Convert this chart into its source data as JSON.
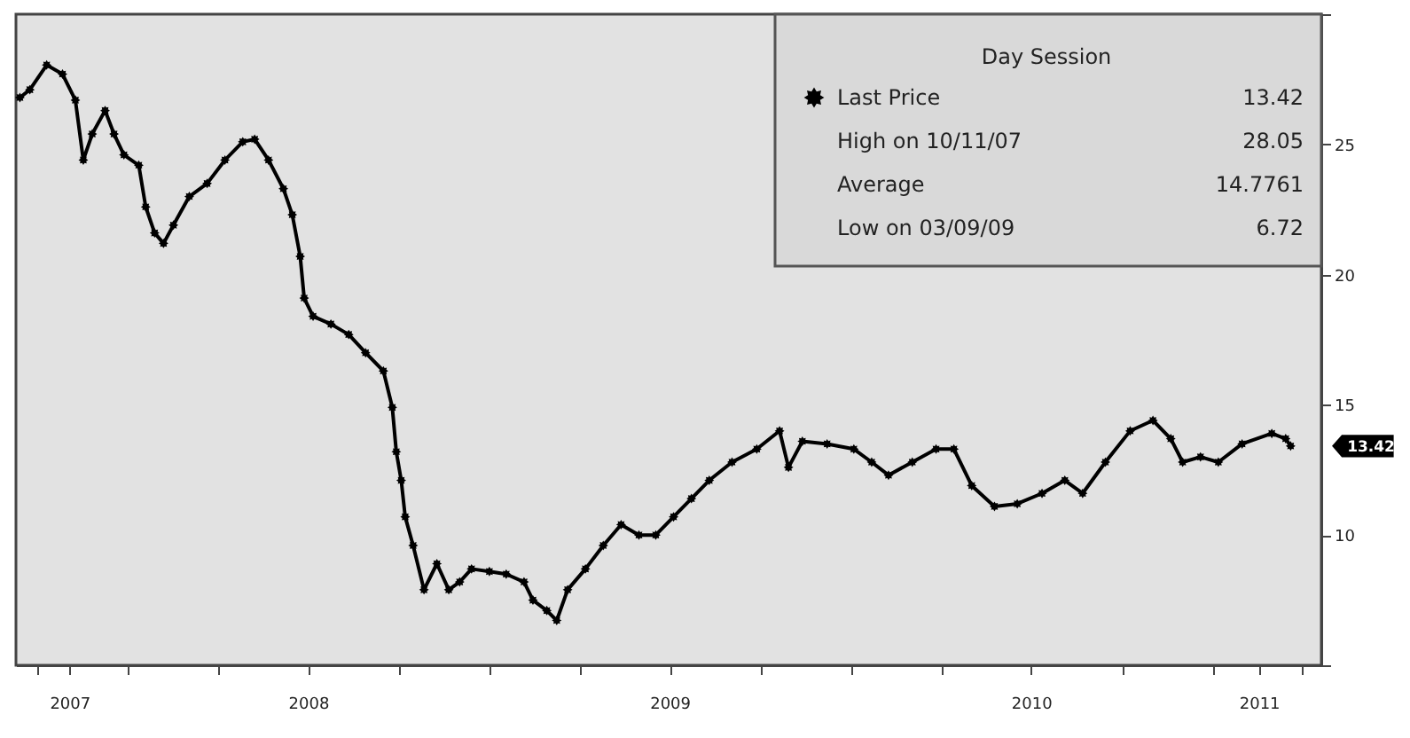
{
  "chart_data": {
    "type": "line",
    "x": [
      "2007-09-14",
      "2007-09-24",
      "2007-10-11",
      "2007-10-27",
      "2007-11-09",
      "2007-11-17",
      "2007-11-26",
      "2007-12-09",
      "2007-12-18",
      "2007-12-28",
      "2008-01-12",
      "2008-01-19",
      "2008-01-28",
      "2008-02-06",
      "2008-02-16",
      "2008-03-03",
      "2008-03-21",
      "2008-04-08",
      "2008-04-26",
      "2008-05-08",
      "2008-05-22",
      "2008-06-06",
      "2008-06-15",
      "2008-06-23",
      "2008-06-27",
      "2008-07-06",
      "2008-07-24",
      "2008-08-11",
      "2008-08-28",
      "2008-09-15",
      "2008-09-24",
      "2008-09-28",
      "2008-10-03",
      "2008-10-07",
      "2008-10-15",
      "2008-10-26",
      "2008-11-08",
      "2008-11-20",
      "2008-12-01",
      "2008-12-13",
      "2008-12-31",
      "2009-01-17",
      "2009-02-04",
      "2009-02-13",
      "2009-02-27",
      "2009-03-09",
      "2009-03-20",
      "2009-04-07",
      "2009-04-25",
      "2009-05-13",
      "2009-05-31",
      "2009-06-17",
      "2009-07-05",
      "2009-07-23",
      "2009-08-10",
      "2009-09-02",
      "2009-09-27",
      "2009-10-20",
      "2009-10-29",
      "2009-11-12",
      "2009-12-07",
      "2010-01-03",
      "2010-01-21",
      "2010-02-07",
      "2010-03-03",
      "2010-03-27",
      "2010-04-14",
      "2010-05-02",
      "2010-05-25",
      "2010-06-17",
      "2010-07-12",
      "2010-08-04",
      "2010-08-22",
      "2010-09-14",
      "2010-10-09",
      "2010-11-01",
      "2010-11-19",
      "2010-12-01",
      "2010-12-19",
      "2011-01-06",
      "2011-01-30",
      "2011-03-01",
      "2011-03-15",
      "2011-03-20"
    ],
    "series": [
      {
        "name": "Last Price",
        "color": "#000000",
        "values": [
          26.8,
          27.1,
          28.05,
          27.7,
          26.7,
          24.4,
          25.4,
          26.3,
          25.4,
          24.6,
          24.2,
          22.6,
          21.6,
          21.2,
          21.9,
          23.0,
          23.5,
          24.4,
          25.1,
          25.2,
          24.4,
          23.3,
          22.3,
          20.7,
          19.1,
          18.4,
          18.1,
          17.7,
          17.0,
          16.3,
          14.9,
          13.2,
          12.1,
          10.7,
          9.6,
          7.9,
          8.9,
          7.9,
          8.2,
          8.7,
          8.6,
          8.5,
          8.2,
          7.5,
          7.1,
          6.72,
          7.9,
          8.7,
          9.6,
          10.4,
          10.0,
          10.0,
          10.7,
          11.4,
          12.1,
          12.8,
          13.3,
          14.0,
          12.6,
          13.6,
          13.5,
          13.3,
          12.8,
          12.3,
          12.8,
          13.3,
          13.3,
          11.9,
          11.1,
          11.2,
          11.6,
          12.1,
          11.6,
          12.8,
          14.0,
          14.4,
          13.7,
          12.8,
          13.0,
          12.8,
          13.5,
          13.9,
          13.7,
          13.42
        ]
      }
    ],
    "xlim": [
      "2007-09-10",
      "2011-04-20"
    ],
    "xticks": [
      {
        "value": "2007-10-01",
        "label": null
      },
      {
        "value": "2007-11-03",
        "label": "2007"
      },
      {
        "value": "2008-01-01",
        "label": null
      },
      {
        "value": "2008-04-01",
        "label": null
      },
      {
        "value": "2008-07-01",
        "label": "2008"
      },
      {
        "value": "2008-10-01",
        "label": null
      },
      {
        "value": "2009-01-01",
        "label": null
      },
      {
        "value": "2009-04-01",
        "label": null
      },
      {
        "value": "2009-07-01",
        "label": "2009"
      },
      {
        "value": "2009-10-01",
        "label": null
      },
      {
        "value": "2010-01-01",
        "label": null
      },
      {
        "value": "2010-04-01",
        "label": null
      },
      {
        "value": "2010-07-01",
        "label": "2010"
      },
      {
        "value": "2010-10-01",
        "label": null
      },
      {
        "value": "2011-01-01",
        "label": null
      },
      {
        "value": "2011-02-16",
        "label": "2011"
      },
      {
        "value": "2011-04-01",
        "label": null
      }
    ],
    "ylim": [
      5,
      30
    ],
    "yticks": [
      {
        "value": 5,
        "label": null
      },
      10,
      15,
      20,
      25,
      {
        "value": 30,
        "label": null
      }
    ],
    "legend": "top right",
    "legend_title": "Day Session",
    "marker": "star",
    "annotations": [
      "13.42",
      "High on 10/11/07",
      "28.05",
      "Average",
      "14.7761",
      "Low on 03/09/09",
      "6.72",
      "13.42"
    ]
  }
}
